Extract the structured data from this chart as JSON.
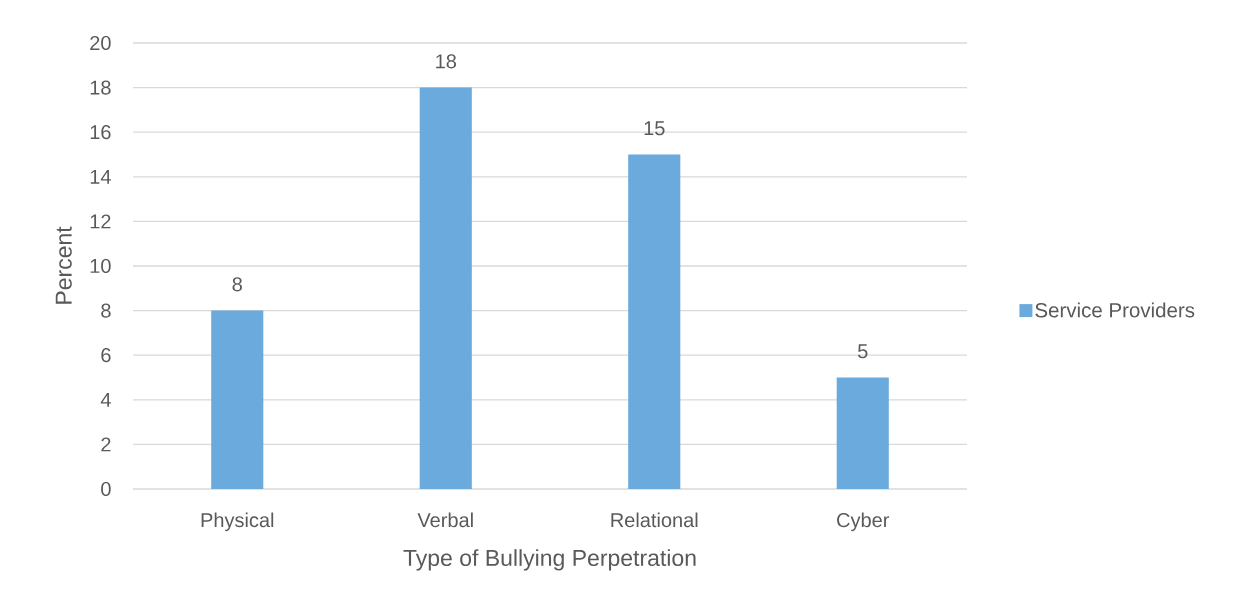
{
  "chart_data": {
    "type": "bar",
    "xlabel": "Type of Bullying Perpetration",
    "ylabel": "Percent",
    "categories": [
      "Physical",
      "Verbal",
      "Relational",
      "Cyber"
    ],
    "series": [
      {
        "name": "Service Providers",
        "color": "#6baadc",
        "values": [
          8,
          18,
          15,
          5
        ]
      }
    ],
    "ylim": [
      0,
      20
    ],
    "yticks": [
      0,
      2,
      4,
      6,
      8,
      10,
      12,
      14,
      16,
      18,
      20
    ],
    "grid": "y",
    "legend": "right",
    "data_labels": true
  }
}
